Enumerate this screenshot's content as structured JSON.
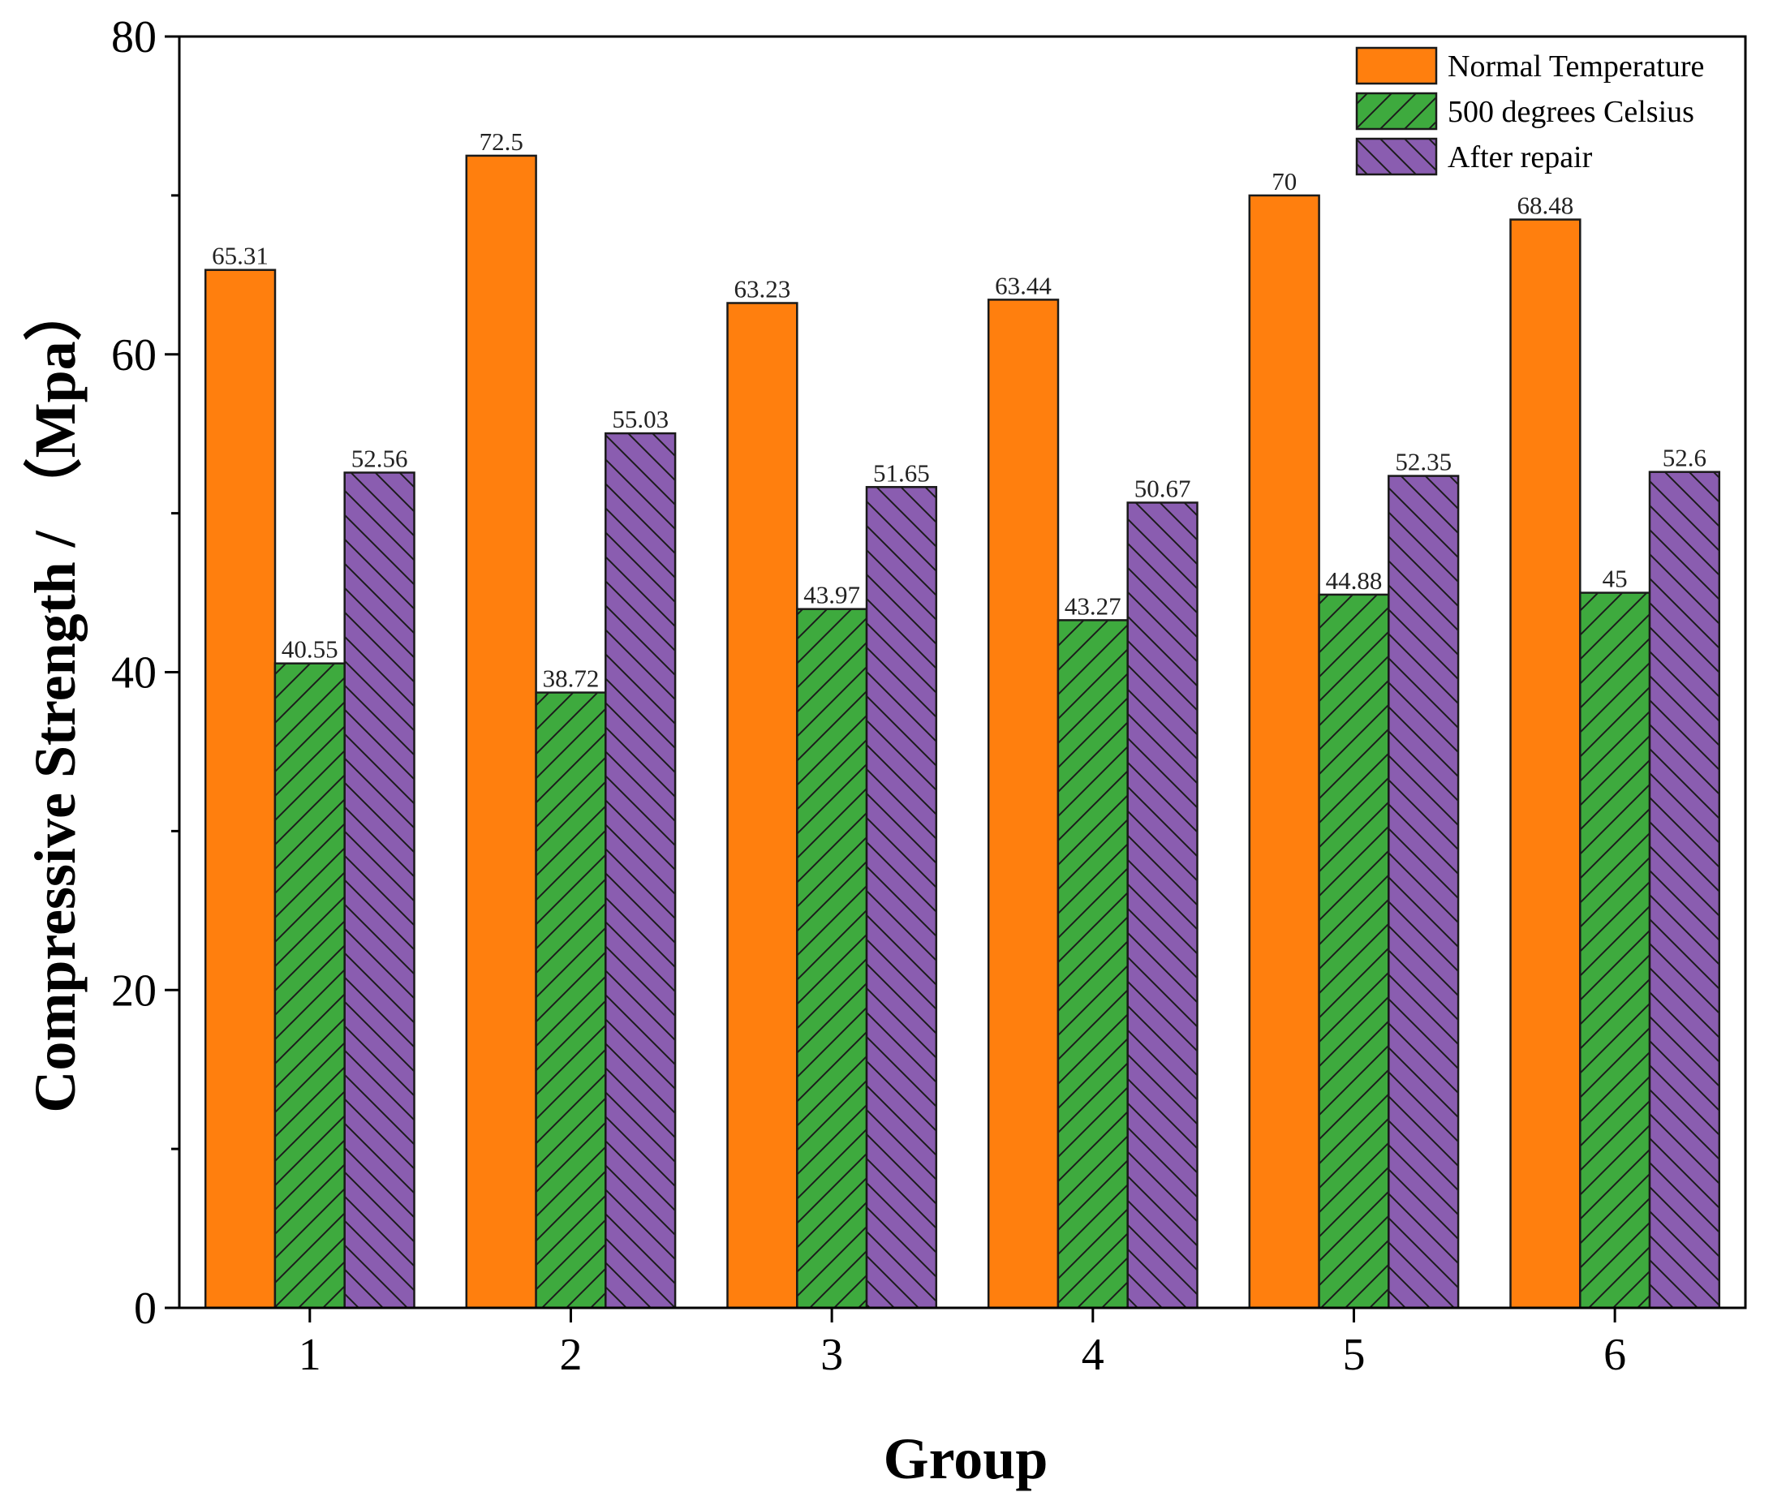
{
  "chart_data": {
    "type": "bar",
    "categories": [
      "1",
      "2",
      "3",
      "4",
      "5",
      "6"
    ],
    "series": [
      {
        "name": "Normal Temperature",
        "values": [
          65.31,
          72.5,
          63.23,
          63.44,
          70,
          68.48
        ],
        "labels": [
          "65.31",
          "72.5",
          "63.23",
          "63.44",
          "70",
          "68.48"
        ],
        "color": "#ff7f0e",
        "pattern": "none"
      },
      {
        "name": "500 degrees Celsius",
        "values": [
          40.55,
          38.72,
          43.97,
          43.27,
          44.88,
          45
        ],
        "labels": [
          "40.55",
          "38.72",
          "43.97",
          "43.27",
          "44.88",
          "45"
        ],
        "color": "#3eaa3e",
        "pattern": "forward-diagonal"
      },
      {
        "name": "After repair",
        "values": [
          52.56,
          55.03,
          51.65,
          50.67,
          52.35,
          52.6
        ],
        "labels": [
          "52.56",
          "55.03",
          "51.65",
          "50.67",
          "52.35",
          "52.6"
        ],
        "color": "#8a5db0",
        "pattern": "back-diagonal"
      }
    ],
    "xlabel": "Group",
    "ylabel": "Compressive Strength / （Mpa）",
    "ylim": [
      0,
      80
    ],
    "yticks": [
      "0",
      "20",
      "40",
      "60",
      "80"
    ],
    "minor_ytick_step": 10,
    "grid": false,
    "legend_position": "top-right"
  }
}
